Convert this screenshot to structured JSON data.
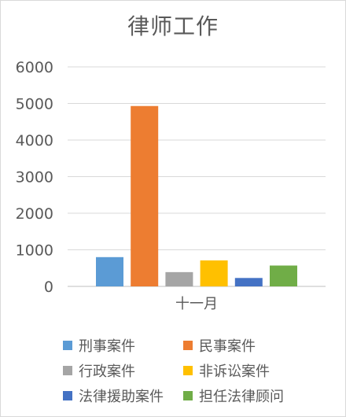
{
  "chart_data": {
    "type": "bar",
    "title": "律师工作",
    "categories": [
      "十一月"
    ],
    "series": [
      {
        "name": "刑事案件",
        "values": [
          800
        ],
        "color": "#5b9bd5"
      },
      {
        "name": "民事案件",
        "values": [
          4930
        ],
        "color": "#ed7d31"
      },
      {
        "name": "行政案件",
        "values": [
          390
        ],
        "color": "#a5a5a5"
      },
      {
        "name": "非诉讼案件",
        "values": [
          710
        ],
        "color": "#ffc000"
      },
      {
        "name": "法律援助案件",
        "values": [
          230
        ],
        "color": "#4472c4"
      },
      {
        "name": "担任法律顾问",
        "values": [
          570
        ],
        "color": "#70ad47"
      }
    ],
    "yticks": [
      0,
      1000,
      2000,
      3000,
      4000,
      5000,
      6000
    ],
    "ylim": [
      0,
      6000
    ],
    "grid": true,
    "legend_position": "bottom"
  }
}
